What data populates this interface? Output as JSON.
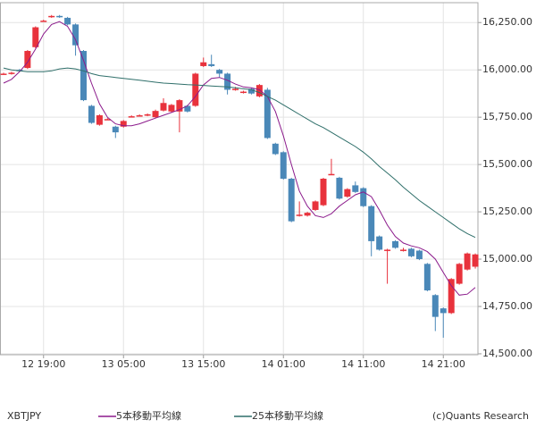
{
  "chart_data": {
    "type": "candlestick",
    "symbol": "XBTJPY",
    "credit": "(c)Quants Research",
    "categories": [
      null,
      null,
      null,
      null,
      null,
      "12 19:00",
      null,
      null,
      null,
      null,
      null,
      null,
      null,
      null,
      null,
      "13 05:00",
      null,
      null,
      null,
      null,
      null,
      null,
      null,
      null,
      null,
      "13 15:00",
      null,
      null,
      null,
      null,
      null,
      null,
      null,
      null,
      null,
      "14 01:00",
      null,
      null,
      null,
      null,
      null,
      null,
      null,
      null,
      null,
      "14 11:00",
      null,
      null,
      null,
      null,
      null,
      null,
      null,
      null,
      null,
      "14 21:00",
      null,
      null,
      null,
      null
    ],
    "open": [
      15980,
      15980,
      16000,
      16010,
      16120,
      16260,
      16280,
      16285,
      16275,
      16240,
      16100,
      15810,
      15710,
      15740,
      15700,
      15700,
      15755,
      15760,
      15760,
      15750,
      15785,
      15780,
      15780,
      15810,
      15810,
      16020,
      16030,
      16000,
      15980,
      15900,
      15880,
      15900,
      15860,
      15895,
      15610,
      15565,
      15425,
      15235,
      15230,
      15260,
      15285,
      15450,
      15430,
      15330,
      15390,
      15375,
      15280,
      15120,
      15050,
      15095,
      15050,
      15055,
      15045,
      14975,
      14810,
      14740,
      14715,
      14870,
      14945,
      14960
    ],
    "high": [
      15985,
      15990,
      16005,
      16105,
      16230,
      16265,
      16290,
      16290,
      16280,
      16245,
      16105,
      15815,
      15765,
      15745,
      15705,
      15735,
      15760,
      15765,
      15770,
      15790,
      15850,
      15820,
      15845,
      15815,
      15985,
      16065,
      16080,
      16005,
      15985,
      15910,
      15890,
      15905,
      15925,
      15905,
      15615,
      15570,
      15430,
      15305,
      15250,
      15310,
      15430,
      15530,
      15435,
      15375,
      15410,
      15380,
      15285,
      15125,
      15055,
      15100,
      15060,
      15060,
      15050,
      14980,
      14815,
      14745,
      14900,
      14980,
      15035,
      15030
    ],
    "low": [
      15975,
      15975,
      15990,
      16005,
      16115,
      16255,
      16275,
      16275,
      16235,
      16075,
      15835,
      15715,
      15705,
      15735,
      15640,
      15695,
      15750,
      15755,
      15755,
      15745,
      15780,
      15775,
      15670,
      15775,
      15805,
      16015,
      16015,
      15960,
      15870,
      15890,
      15875,
      15870,
      15855,
      15635,
      15550,
      15420,
      15195,
      15225,
      15225,
      15255,
      15280,
      15445,
      15315,
      15325,
      15350,
      15275,
      15015,
      15045,
      14870,
      15055,
      15040,
      15010,
      14995,
      14830,
      14620,
      14585,
      14710,
      14865,
      14940,
      14950
    ],
    "close": [
      15980,
      15985,
      15995,
      16100,
      16225,
      16260,
      16285,
      16280,
      16240,
      16130,
      15840,
      15720,
      15760,
      15740,
      15670,
      15730,
      15755,
      15760,
      15765,
      15783,
      15825,
      15815,
      15840,
      15780,
      15980,
      16040,
      16020,
      15980,
      15895,
      15900,
      15885,
      15875,
      15920,
      15640,
      15555,
      15425,
      15200,
      15235,
      15245,
      15305,
      15425,
      15450,
      15320,
      15370,
      15355,
      15280,
      15095,
      15050,
      15050,
      15060,
      15050,
      15015,
      15000,
      14835,
      14695,
      14715,
      14895,
      14975,
      15030,
      15025
    ],
    "up_color": "#e8323c",
    "down_color": "#4a88b8",
    "series": [
      {
        "name": "5本移動平均線",
        "color": "#8b1a8b",
        "values": [
          15930,
          15950,
          15990,
          16040,
          16110,
          16190,
          16240,
          16255,
          16230,
          16160,
          16050,
          15930,
          15820,
          15750,
          15715,
          15705,
          15705,
          15715,
          15730,
          15745,
          15760,
          15775,
          15790,
          15810,
          15860,
          15920,
          15955,
          15960,
          15945,
          15925,
          15910,
          15905,
          15895,
          15860,
          15780,
          15650,
          15500,
          15360,
          15280,
          15230,
          15220,
          15240,
          15280,
          15310,
          15340,
          15355,
          15330,
          15260,
          15180,
          15120,
          15085,
          15070,
          15060,
          15040,
          15000,
          14930,
          14860,
          14810,
          14815,
          14850
        ]
      },
      {
        "name": "25本移動平均線",
        "color": "#2f6f6a",
        "values": [
          16010,
          16000,
          15995,
          15990,
          15990,
          15990,
          15995,
          16005,
          16010,
          16005,
          15995,
          15980,
          15970,
          15965,
          15960,
          15955,
          15950,
          15945,
          15940,
          15935,
          15930,
          15928,
          15925,
          15922,
          15920,
          15918,
          15915,
          15912,
          15910,
          15905,
          15900,
          15895,
          15880,
          15860,
          15840,
          15815,
          15790,
          15765,
          15740,
          15715,
          15695,
          15670,
          15645,
          15620,
          15595,
          15565,
          15530,
          15490,
          15455,
          15420,
          15380,
          15345,
          15310,
          15280,
          15250,
          15220,
          15190,
          15160,
          15135,
          15115
        ]
      }
    ],
    "ylim": [
      14495,
      16355
    ],
    "yticks": [
      {
        "value": 14500,
        "label": "14,500.00"
      },
      {
        "value": 14750,
        "label": "14,750.00"
      },
      {
        "value": 15000,
        "label": "15,000.00"
      },
      {
        "value": 15250,
        "label": "15,250.00"
      },
      {
        "value": 15500,
        "label": "15,500.00"
      },
      {
        "value": 15750,
        "label": "15,750.00"
      },
      {
        "value": 16000,
        "label": "16,000.00"
      },
      {
        "value": 16250,
        "label": "16,250.00"
      }
    ],
    "grid": true
  }
}
